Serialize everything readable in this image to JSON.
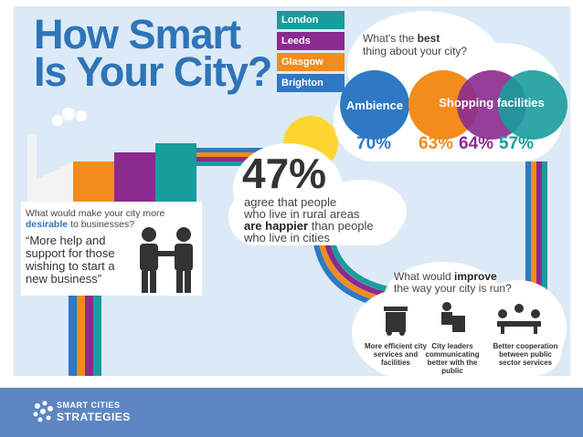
{
  "title": {
    "line1": "How Smart",
    "line2": "Is Your City?"
  },
  "legend": [
    {
      "label": "London",
      "color": "#1a9c9c"
    },
    {
      "label": "Leeds",
      "color": "#8b2a8f"
    },
    {
      "label": "Glasgow",
      "color": "#f28c1b"
    },
    {
      "label": "Brighton",
      "color": "#2f78c4"
    }
  ],
  "best": {
    "question_pre": "What's the ",
    "question_bold": "best",
    "question_post": "thing about your city?",
    "ambience_label": "Ambience",
    "shopping_label": "Shopping facilities",
    "percentages": [
      {
        "value": "70%",
        "color": "#2f78c4"
      },
      {
        "value": "63%",
        "color": "#f28c1b"
      },
      {
        "value": "64%",
        "color": "#8b2a8f"
      },
      {
        "value": "57%",
        "color": "#1a9c9c"
      }
    ]
  },
  "rural": {
    "stat": "47%",
    "line1": "agree that people",
    "line2": "who live in rural areas",
    "line3_bold": "are happier",
    "line3_rest": " than people",
    "line4": "who live in cities"
  },
  "desirable": {
    "question_pre": "What would make your city more",
    "question_bold": "desirable",
    "question_post": " to businesses?",
    "answer": "“More help and support for those wishing to start a new business”"
  },
  "improve": {
    "question_pre": "What would ",
    "question_bold": "improve",
    "question_post": "the way your city is run?",
    "items": [
      {
        "label": "More efficient city services and facilities"
      },
      {
        "label": "City leaders communicating better with the public"
      },
      {
        "label": "Better cooperation between public sector services"
      }
    ]
  },
  "footer": {
    "logo_line1": "SMART CITIES",
    "logo_line2": "STRATEGIES"
  }
}
